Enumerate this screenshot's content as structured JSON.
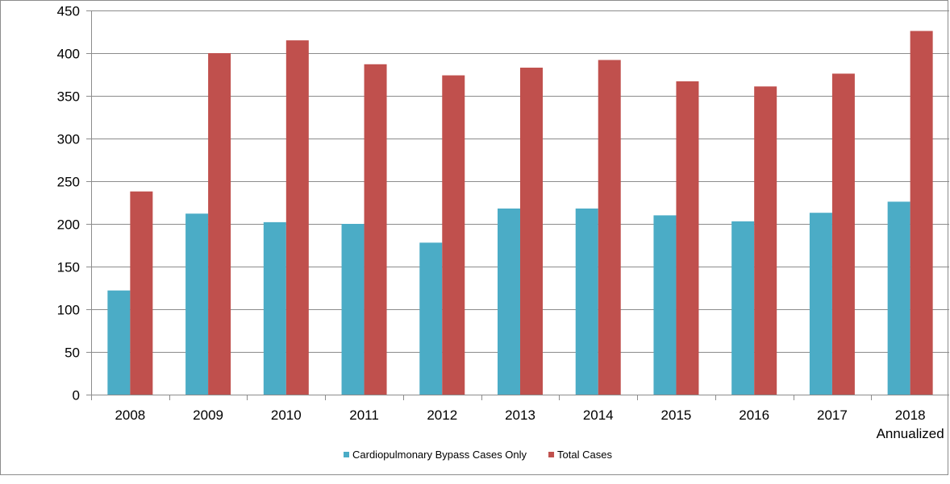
{
  "chart_data": {
    "type": "bar",
    "title": "",
    "xlabel": "",
    "ylabel": "",
    "categories": [
      "2008",
      "2009",
      "2010",
      "2011",
      "2012",
      "2013",
      "2014",
      "2015",
      "2016",
      "2017",
      "2018\nAnnualized"
    ],
    "series": [
      {
        "name": "Cardiopulmonary Bypass Cases Only",
        "color": "#4BACC6",
        "values": [
          122,
          212,
          202,
          200,
          178,
          218,
          218,
          210,
          203,
          213,
          226
        ]
      },
      {
        "name": "Total Cases",
        "color": "#C0504D",
        "values": [
          238,
          400,
          415,
          387,
          374,
          383,
          392,
          367,
          361,
          376,
          426
        ]
      }
    ],
    "ylim": [
      0,
      450
    ],
    "yticks": [
      0,
      50,
      100,
      150,
      200,
      250,
      300,
      350,
      400,
      450
    ],
    "grid": true,
    "legend_position": "bottom"
  }
}
